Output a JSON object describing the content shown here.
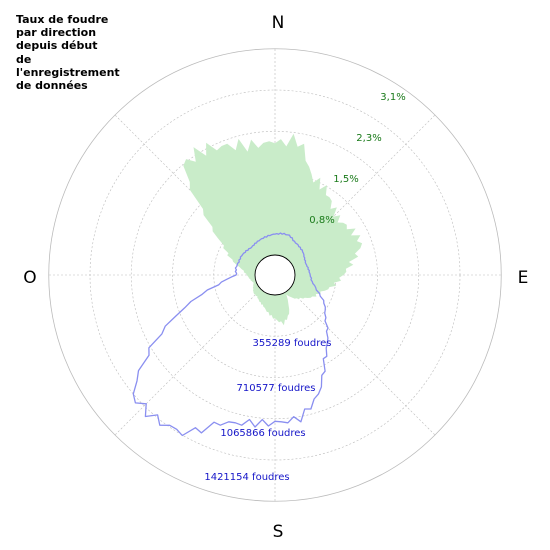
{
  "title_lines": [
    "Taux de foudre",
    "par direction",
    "depuis début",
    "de",
    "l'enregistrement",
    "de données"
  ],
  "colors": {
    "rate_fill": "#c9ecc9",
    "count_line": "#8a8ff0",
    "grid": "#bbbbbb",
    "pct_label": "#1a7a1a",
    "count_label": "#1515c8"
  },
  "directions": [
    "N",
    "E",
    "S",
    "O"
  ],
  "chart_data": {
    "type": "polar-area-line",
    "title": "Taux de foudre par direction depuis début de l'enregistrement de données",
    "rate_axis": {
      "unit": "%",
      "ticks": [
        0.8,
        1.5,
        2.3,
        3.1
      ],
      "tick_labels": [
        "0,8%",
        "1,5%",
        "2,3%",
        "3,1%"
      ]
    },
    "count_axis": {
      "unit": "foudres",
      "ticks": [
        355289,
        710577,
        1065866,
        1421154
      ],
      "tick_labels": [
        "355289 foudres",
        "710577 foudres",
        "1065866 foudres",
        "1421154 foudres"
      ]
    },
    "grid": true,
    "bearing_step_deg": 10,
    "bearings_deg": [
      0,
      10,
      20,
      30,
      40,
      50,
      60,
      70,
      80,
      90,
      100,
      110,
      120,
      130,
      140,
      150,
      160,
      170,
      180,
      190,
      200,
      210,
      220,
      230,
      240,
      250,
      260,
      270,
      280,
      290,
      300,
      310,
      320,
      330,
      340,
      350
    ],
    "series": [
      {
        "kind": "area",
        "values": [
          2.1,
          2.2,
          1.6,
          1.5,
          1.3,
          1.2,
          1.3,
          1.35,
          1.1,
          0.9,
          0.75,
          0.55,
          0.45,
          0.3,
          0.2,
          0.05,
          0.4,
          0.55,
          0.45,
          0.35,
          0.25,
          0.2,
          0.15,
          0.15,
          0.1,
          0.05,
          0.1,
          0.15,
          0.25,
          0.5,
          0.75,
          1.3,
          2.3,
          2.35,
          2.2,
          2.1
        ]
      },
      {
        "kind": "line",
        "values": [
          180000,
          190000,
          190000,
          160000,
          150000,
          140000,
          120000,
          110000,
          120000,
          130000,
          150000,
          210000,
          320000,
          390000,
          530000,
          680000,
          920000,
          1080000,
          1100000,
          1120000,
          1180000,
          1400000,
          1440000,
          1430000,
          1050000,
          660000,
          330000,
          160000,
          170000,
          160000,
          160000,
          150000,
          140000,
          150000,
          160000,
          170000
        ]
      }
    ]
  }
}
